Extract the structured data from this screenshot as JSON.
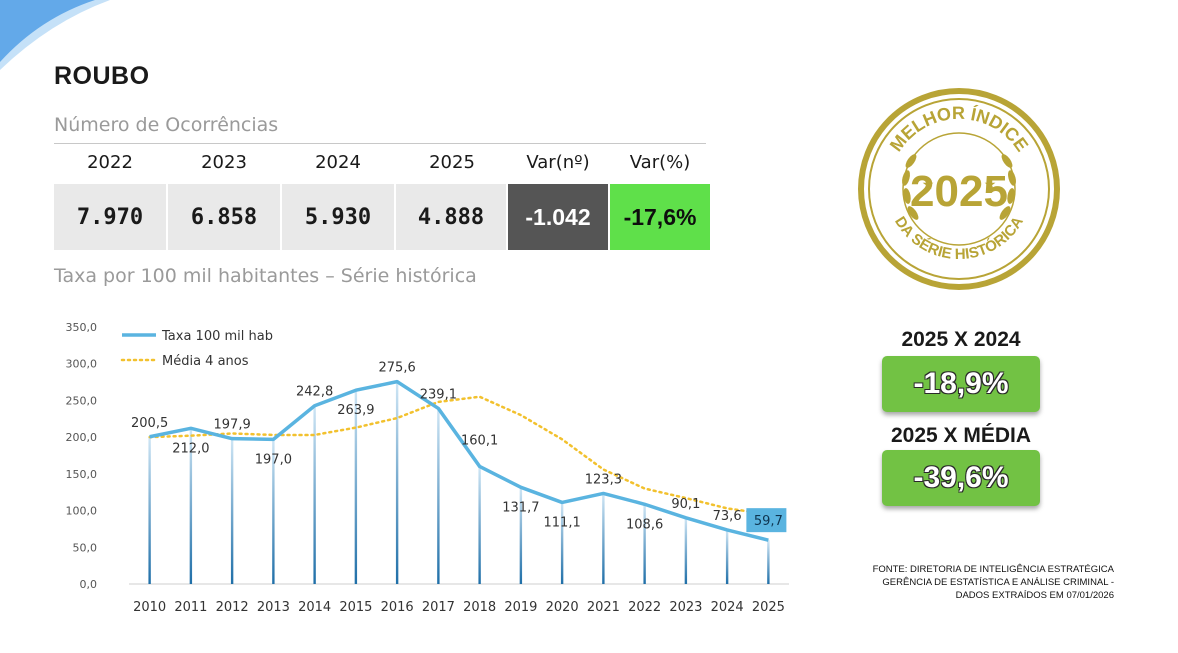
{
  "title": "ROUBO",
  "occurrences": {
    "heading": "Número de Ocorrências",
    "headers": [
      "2022",
      "2023",
      "2024",
      "2025",
      "Var(nº)",
      "Var(%)"
    ],
    "values": [
      "7.970",
      "6.858",
      "5.930",
      "4.888",
      "-1.042",
      "-17,6%"
    ]
  },
  "rate_heading": "Taxa por 100 mil habitantes – Série histórica",
  "seal": {
    "top_text": "MELHOR ÍNDICE",
    "year": "2025",
    "bottom_text": "DA SÉRIE HISTÓRICA",
    "color": "#b8a436"
  },
  "comparisons": [
    {
      "label": "2025 X 2024",
      "value": "-18,9%"
    },
    {
      "label": "2025 X MÉDIA",
      "value": "-39,6%"
    }
  ],
  "source": {
    "lines": [
      "FONTE: DIRETORIA DE INTELIGÊNCIA ESTRATÉGICA",
      "GERÊNCIA DE ESTATÍSTICA E ANÁLISE CRIMINAL -",
      "DADOS EXTRAÍDOS EM 07/01/2026"
    ]
  },
  "colors": {
    "line": "#5ab4e0",
    "average": "#f2c12e",
    "green": "#72c244",
    "dark_cell": "#555555",
    "highlight_label_bg": "#5ab4e0"
  },
  "chart_data": {
    "type": "line",
    "categories": [
      "2010",
      "2011",
      "2012",
      "2013",
      "2014",
      "2015",
      "2016",
      "2017",
      "2018",
      "2019",
      "2020",
      "2021",
      "2022",
      "2023",
      "2024",
      "2025"
    ],
    "series": [
      {
        "name": "Taxa 100 mil hab",
        "values": [
          200.5,
          212.0,
          197.9,
          197.0,
          242.8,
          263.9,
          275.6,
          239.1,
          160.1,
          131.7,
          111.1,
          123.3,
          108.6,
          90.1,
          73.6,
          59.7
        ],
        "labels": [
          "200,5",
          "212,0",
          "197,9",
          "197,0",
          "242,8",
          "263,9",
          "275,6",
          "239,1",
          "160,1",
          "131,7",
          "111,1",
          "123,3",
          "108,6",
          "90,1",
          "73,6",
          "59,7"
        ]
      },
      {
        "name": "Média 4 anos",
        "values": [
          200,
          202,
          205,
          203,
          203,
          213,
          226,
          248,
          255,
          230,
          197,
          156,
          130,
          117,
          103,
          95
        ]
      }
    ],
    "ylim": [
      0,
      350
    ],
    "yticks": [
      "0,0",
      "50,0",
      "100,0",
      "150,0",
      "200,0",
      "250,0",
      "300,0",
      "350,0"
    ],
    "ytick_values": [
      0,
      50,
      100,
      150,
      200,
      250,
      300,
      350
    ],
    "legend_position": "top-left"
  }
}
